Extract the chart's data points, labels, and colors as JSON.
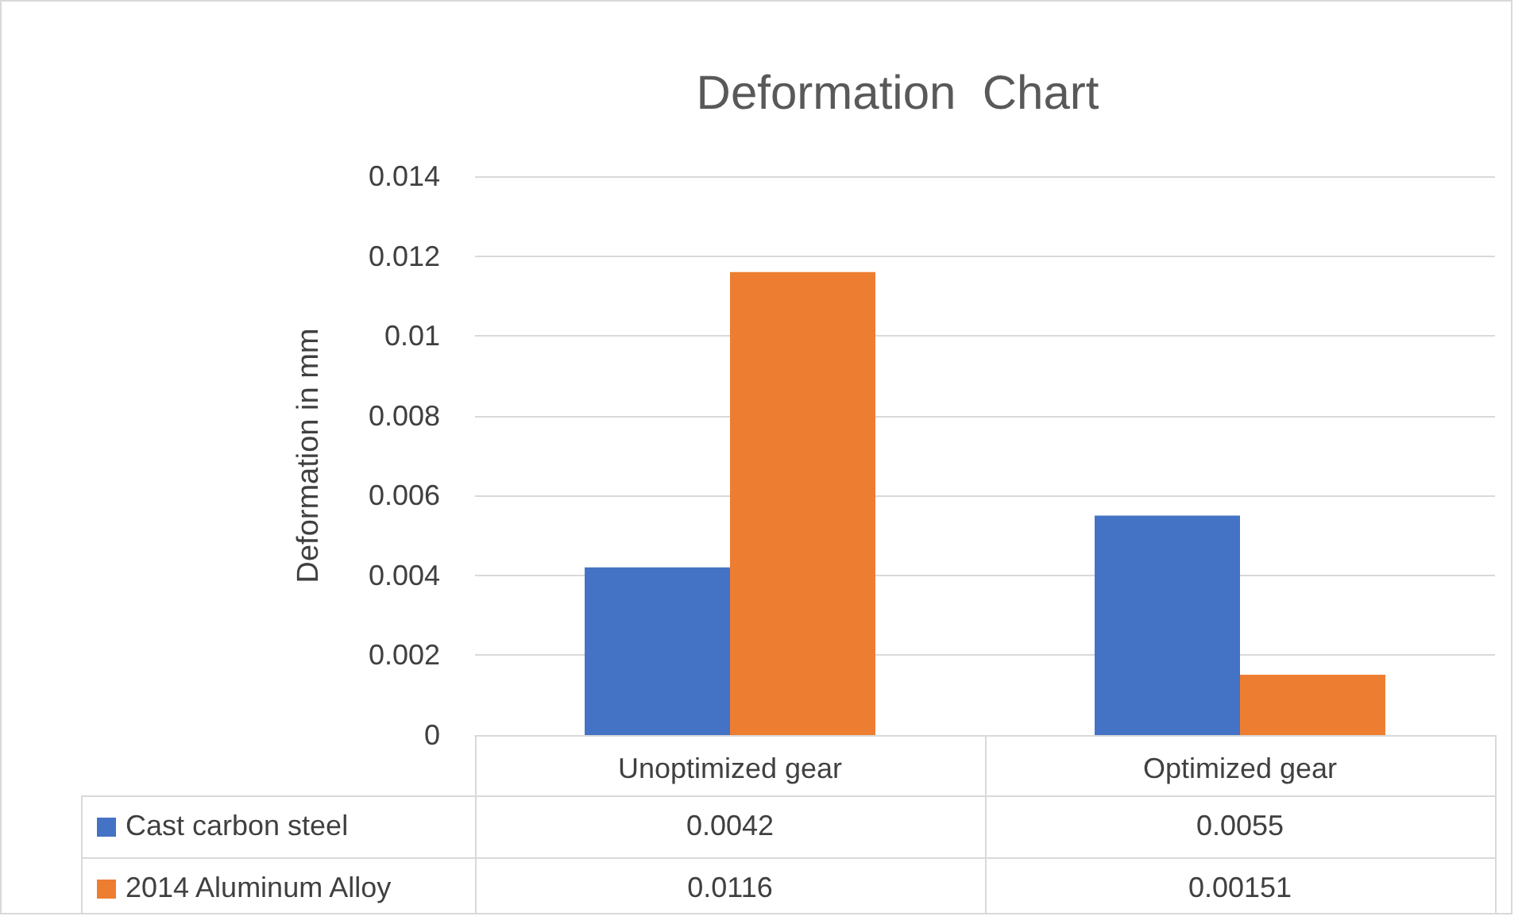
{
  "chart_data": {
    "type": "bar",
    "title": "Deformation  Chart",
    "ylabel": "Deformation in mm",
    "categories": [
      "Unoptimized gear",
      "Optimized gear"
    ],
    "series": [
      {
        "name": "Cast carbon steel",
        "color": "#4472c4",
        "values": [
          0.0042,
          0.0055
        ]
      },
      {
        "name": "2014 Aluminum Alloy",
        "color": "#ed7d31",
        "values": [
          0.0116,
          0.00151
        ]
      }
    ],
    "ylim": [
      0,
      0.014
    ],
    "yticks": [
      0,
      0.002,
      0.004,
      0.006,
      0.008,
      0.01,
      0.012,
      0.014
    ],
    "grid": "y",
    "legend": "bottom",
    "data_labels": true
  }
}
